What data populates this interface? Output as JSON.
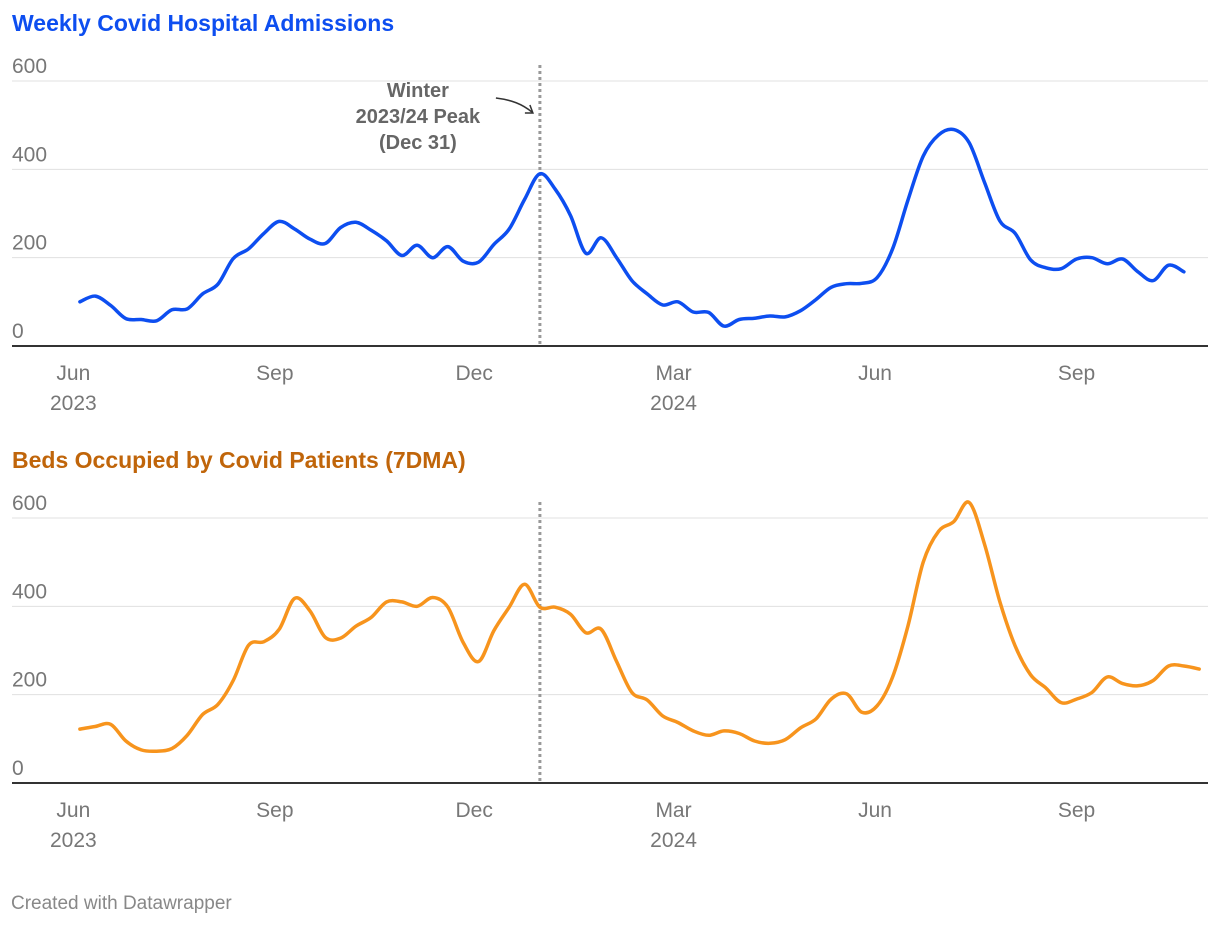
{
  "chart_data": [
    {
      "type": "line",
      "title": "Weekly Covid Hospital Admissions",
      "color": "#0d4ef0",
      "ylim": [
        0,
        600
      ],
      "yticks": [
        0,
        200,
        400,
        600
      ],
      "x_start": "2023-05-25",
      "x_end": "2024-10-31",
      "x_ticks": [
        {
          "date": "2023-06-01",
          "label": "Jun",
          "year": "2023"
        },
        {
          "date": "2023-09-01",
          "label": "Sep",
          "year": ""
        },
        {
          "date": "2023-12-01",
          "label": "Dec",
          "year": ""
        },
        {
          "date": "2024-03-01",
          "label": "Mar",
          "year": "2024"
        },
        {
          "date": "2024-06-01",
          "label": "Jun",
          "year": ""
        },
        {
          "date": "2024-09-01",
          "label": "Sep",
          "year": ""
        }
      ],
      "marker": {
        "date": "2023-12-31",
        "label_lines": [
          "Winter",
          "2023/24 Peak",
          "(Dec 31)"
        ]
      },
      "series": [
        {
          "name": "Weekly admissions",
          "points": [
            [
              "2023-06-04",
              100
            ],
            [
              "2023-06-11",
              113
            ],
            [
              "2023-06-18",
              92
            ],
            [
              "2023-06-25",
              62
            ],
            [
              "2023-07-02",
              60
            ],
            [
              "2023-07-09",
              57
            ],
            [
              "2023-07-16",
              82
            ],
            [
              "2023-07-23",
              84
            ],
            [
              "2023-07-30",
              118
            ],
            [
              "2023-08-06",
              140
            ],
            [
              "2023-08-13",
              198
            ],
            [
              "2023-08-20",
              220
            ],
            [
              "2023-08-27",
              255
            ],
            [
              "2023-09-03",
              282
            ],
            [
              "2023-09-10",
              265
            ],
            [
              "2023-09-17",
              242
            ],
            [
              "2023-09-24",
              232
            ],
            [
              "2023-10-01",
              268
            ],
            [
              "2023-10-08",
              280
            ],
            [
              "2023-10-15",
              262
            ],
            [
              "2023-10-22",
              238
            ],
            [
              "2023-10-29",
              205
            ],
            [
              "2023-11-05",
              228
            ],
            [
              "2023-11-12",
              200
            ],
            [
              "2023-11-19",
              225
            ],
            [
              "2023-11-26",
              192
            ],
            [
              "2023-12-03",
              190
            ],
            [
              "2023-12-10",
              230
            ],
            [
              "2023-12-17",
              265
            ],
            [
              "2023-12-24",
              332
            ],
            [
              "2023-12-31",
              390
            ],
            [
              "2024-01-07",
              355
            ],
            [
              "2024-01-14",
              295
            ],
            [
              "2024-01-21",
              210
            ],
            [
              "2024-01-28",
              245
            ],
            [
              "2024-02-04",
              200
            ],
            [
              "2024-02-11",
              148
            ],
            [
              "2024-02-18",
              118
            ],
            [
              "2024-02-25",
              93
            ],
            [
              "2024-03-03",
              100
            ],
            [
              "2024-03-10",
              77
            ],
            [
              "2024-03-17",
              76
            ],
            [
              "2024-03-24",
              45
            ],
            [
              "2024-03-31",
              60
            ],
            [
              "2024-04-07",
              63
            ],
            [
              "2024-04-14",
              68
            ],
            [
              "2024-04-21",
              66
            ],
            [
              "2024-04-28",
              80
            ],
            [
              "2024-05-05",
              105
            ],
            [
              "2024-05-12",
              133
            ],
            [
              "2024-05-19",
              141
            ],
            [
              "2024-05-26",
              142
            ],
            [
              "2024-06-02",
              155
            ],
            [
              "2024-06-09",
              220
            ],
            [
              "2024-06-16",
              330
            ],
            [
              "2024-06-23",
              430
            ],
            [
              "2024-06-30",
              478
            ],
            [
              "2024-07-07",
              490
            ],
            [
              "2024-07-14",
              460
            ],
            [
              "2024-07-21",
              370
            ],
            [
              "2024-07-28",
              283
            ],
            [
              "2024-08-04",
              255
            ],
            [
              "2024-08-11",
              195
            ],
            [
              "2024-08-18",
              177
            ],
            [
              "2024-08-25",
              175
            ],
            [
              "2024-09-01",
              197
            ],
            [
              "2024-09-08",
              200
            ],
            [
              "2024-09-15",
              186
            ],
            [
              "2024-09-22",
              197
            ],
            [
              "2024-09-29",
              168
            ],
            [
              "2024-10-06",
              148
            ],
            [
              "2024-10-13",
              183
            ],
            [
              "2024-10-20",
              168
            ]
          ]
        }
      ]
    },
    {
      "type": "line",
      "title": "Beds Occupied by Covid Patients (7DMA)",
      "color": "#f7941d",
      "ylim": [
        0,
        600
      ],
      "yticks": [
        0,
        200,
        400,
        600
      ],
      "x_start": "2023-05-25",
      "x_end": "2024-10-31",
      "x_ticks": [
        {
          "date": "2023-06-01",
          "label": "Jun",
          "year": "2023"
        },
        {
          "date": "2023-09-01",
          "label": "Sep",
          "year": ""
        },
        {
          "date": "2023-12-01",
          "label": "Dec",
          "year": ""
        },
        {
          "date": "2024-03-01",
          "label": "Mar",
          "year": "2024"
        },
        {
          "date": "2024-06-01",
          "label": "Jun",
          "year": ""
        },
        {
          "date": "2024-09-01",
          "label": "Sep",
          "year": ""
        }
      ],
      "marker": {
        "date": "2023-12-31"
      },
      "series": [
        {
          "name": "Beds occupied (7DMA)",
          "points": [
            [
              "2023-06-04",
              122
            ],
            [
              "2023-06-11",
              128
            ],
            [
              "2023-06-18",
              133
            ],
            [
              "2023-06-25",
              95
            ],
            [
              "2023-07-02",
              75
            ],
            [
              "2023-07-09",
              72
            ],
            [
              "2023-07-16",
              78
            ],
            [
              "2023-07-23",
              108
            ],
            [
              "2023-07-30",
              155
            ],
            [
              "2023-08-06",
              178
            ],
            [
              "2023-08-13",
              232
            ],
            [
              "2023-08-20",
              312
            ],
            [
              "2023-08-27",
              320
            ],
            [
              "2023-09-03",
              348
            ],
            [
              "2023-09-10",
              418
            ],
            [
              "2023-09-17",
              390
            ],
            [
              "2023-09-24",
              330
            ],
            [
              "2023-10-01",
              328
            ],
            [
              "2023-10-08",
              355
            ],
            [
              "2023-10-15",
              375
            ],
            [
              "2023-10-22",
              410
            ],
            [
              "2023-10-29",
              410
            ],
            [
              "2023-11-05",
              400
            ],
            [
              "2023-11-12",
              420
            ],
            [
              "2023-11-19",
              398
            ],
            [
              "2023-11-26",
              318
            ],
            [
              "2023-12-03",
              275
            ],
            [
              "2023-12-10",
              345
            ],
            [
              "2023-12-17",
              398
            ],
            [
              "2023-12-24",
              450
            ],
            [
              "2023-12-31",
              398
            ],
            [
              "2024-01-07",
              398
            ],
            [
              "2024-01-14",
              382
            ],
            [
              "2024-01-21",
              340
            ],
            [
              "2024-01-28",
              348
            ],
            [
              "2024-02-04",
              275
            ],
            [
              "2024-02-11",
              205
            ],
            [
              "2024-02-18",
              188
            ],
            [
              "2024-02-25",
              152
            ],
            [
              "2024-03-03",
              137
            ],
            [
              "2024-03-10",
              118
            ],
            [
              "2024-03-17",
              108
            ],
            [
              "2024-03-24",
              118
            ],
            [
              "2024-03-31",
              112
            ],
            [
              "2024-04-07",
              95
            ],
            [
              "2024-04-14",
              90
            ],
            [
              "2024-04-21",
              98
            ],
            [
              "2024-04-28",
              125
            ],
            [
              "2024-05-05",
              145
            ],
            [
              "2024-05-12",
              190
            ],
            [
              "2024-05-19",
              202
            ],
            [
              "2024-05-26",
              160
            ],
            [
              "2024-06-02",
              175
            ],
            [
              "2024-06-09",
              240
            ],
            [
              "2024-06-16",
              355
            ],
            [
              "2024-06-23",
              500
            ],
            [
              "2024-06-30",
              570
            ],
            [
              "2024-07-07",
              592
            ],
            [
              "2024-07-14",
              635
            ],
            [
              "2024-07-21",
              540
            ],
            [
              "2024-07-28",
              410
            ],
            [
              "2024-08-04",
              310
            ],
            [
              "2024-08-11",
              245
            ],
            [
              "2024-08-18",
              215
            ],
            [
              "2024-08-25",
              182
            ],
            [
              "2024-09-01",
              190
            ],
            [
              "2024-09-08",
              205
            ],
            [
              "2024-09-15",
              240
            ],
            [
              "2024-09-22",
              225
            ],
            [
              "2024-09-29",
              220
            ],
            [
              "2024-10-06",
              232
            ],
            [
              "2024-10-13",
              265
            ],
            [
              "2024-10-20",
              265
            ],
            [
              "2024-10-27",
              258
            ]
          ]
        }
      ]
    }
  ],
  "footer": "Created with Datawrapper"
}
